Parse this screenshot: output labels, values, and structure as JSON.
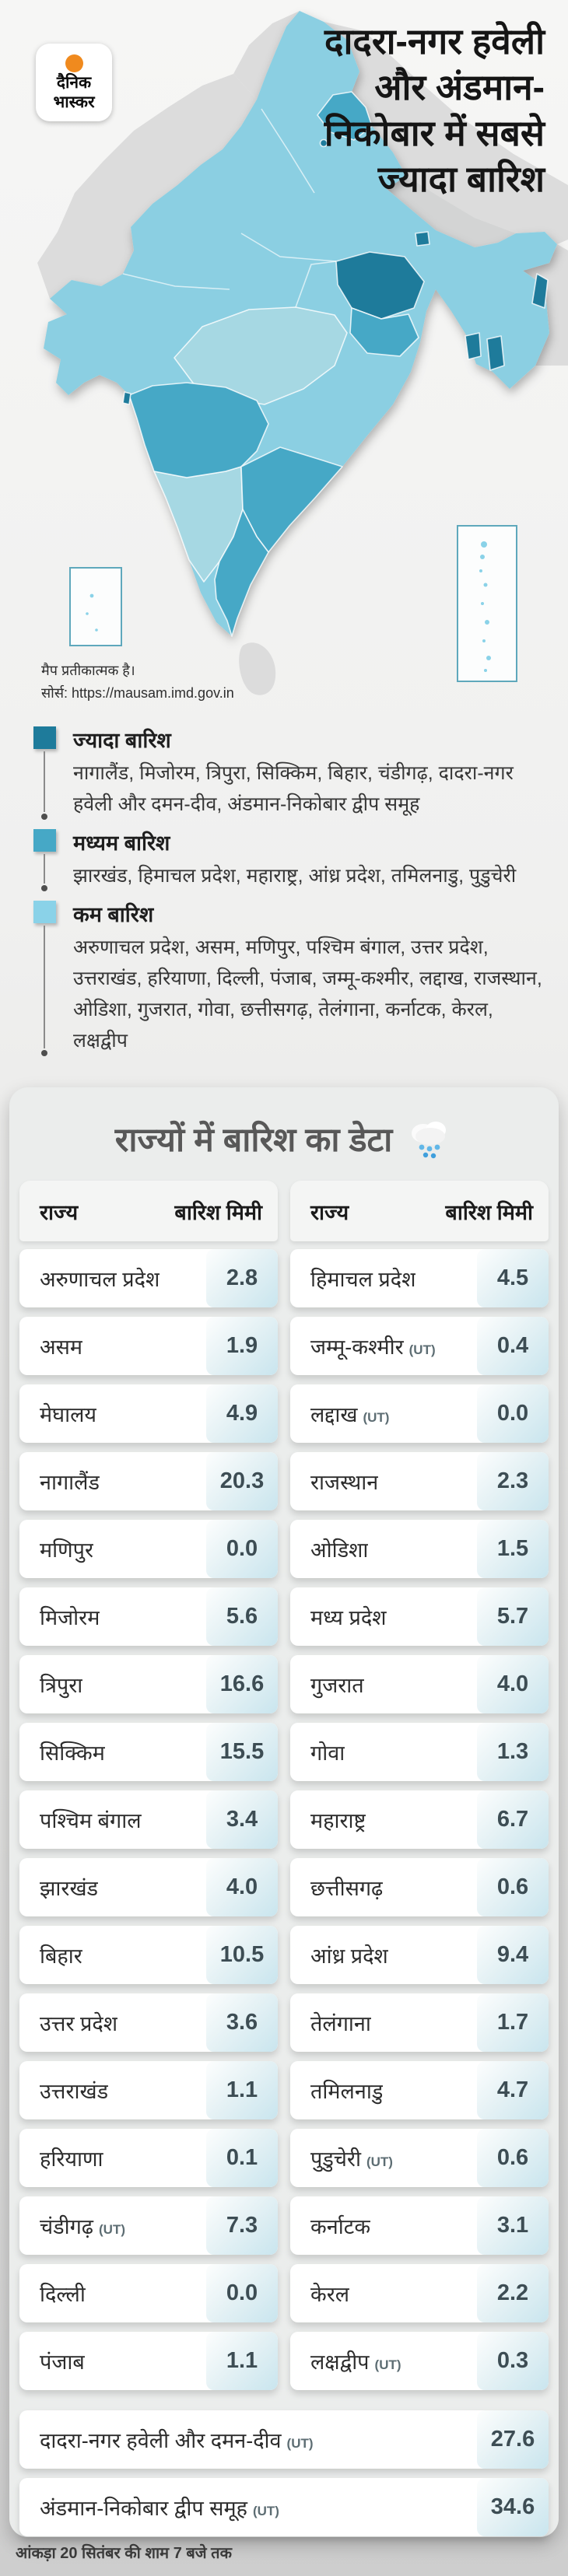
{
  "brand": {
    "logo_line1": "दैनिक",
    "logo_line2": "भास्कर"
  },
  "header": {
    "title_lines": [
      "दादरा-नगर हवेली",
      "और अंडमान-",
      "निकोबार में सबसे",
      "ज्यादा बारिश"
    ]
  },
  "map": {
    "note_line1": "मैप प्रतीकात्मक है।",
    "note_line2": "सोर्स: https://mausam.imd.gov.in"
  },
  "legend": {
    "items": [
      {
        "label": "ज्यादा बारिश",
        "color": "#1e7b9b",
        "states": "नागालैंड, मिजोरम, त्रिपुरा, सिक्किम, बिहार, चंडीगढ़, दादरा-नगर हवेली और दमन-दीव, अंडमान-निकोबार द्वीप समूह"
      },
      {
        "label": "मध्यम बारिश",
        "color": "#46a8c6",
        "states": "झारखंड, हिमाचल प्रदेश, महाराष्ट्र, आंध्र प्रदेश, तमिलनाडु, पुडुचेरी"
      },
      {
        "label": "कम बारिश",
        "color": "#8ad2e8",
        "states": "अरुणाचल प्रदेश, असम, मणिपुर, पश्चिम बंगाल, उत्तर प्रदेश, उत्तराखंड, हरियाणा, दिल्ली, पंजाब, जम्मू-कश्मीर, लद्दाख, राजस्थान, ओडिशा, गुजरात, गोवा, छत्तीसगढ़, तेलंगाना, कर्नाटक, केरल, लक्षद्वीप"
      }
    ]
  },
  "table": {
    "title": "राज्यों में बारिश का डेटा",
    "col_state": "राज्य",
    "col_rain": "बारिश मिमी",
    "left": [
      {
        "name": "अरुणाचल प्रदेश",
        "ut": "",
        "value": "2.8"
      },
      {
        "name": "असम",
        "ut": "",
        "value": "1.9"
      },
      {
        "name": "मेघालय",
        "ut": "",
        "value": "4.9"
      },
      {
        "name": "नागालैंड",
        "ut": "",
        "value": "20.3"
      },
      {
        "name": "मणिपुर",
        "ut": "",
        "value": "0.0"
      },
      {
        "name": "मिजोरम",
        "ut": "",
        "value": "5.6"
      },
      {
        "name": "त्रिपुरा",
        "ut": "",
        "value": "16.6"
      },
      {
        "name": "सिक्किम",
        "ut": "",
        "value": "15.5"
      },
      {
        "name": "पश्चिम बंगाल",
        "ut": "",
        "value": "3.4"
      },
      {
        "name": "झारखंड",
        "ut": "",
        "value": "4.0"
      },
      {
        "name": "बिहार",
        "ut": "",
        "value": "10.5"
      },
      {
        "name": "उत्तर प्रदेश",
        "ut": "",
        "value": "3.6"
      },
      {
        "name": "उत्तराखंड",
        "ut": "",
        "value": "1.1"
      },
      {
        "name": "हरियाणा",
        "ut": "",
        "value": "0.1"
      },
      {
        "name": "चंडीगढ़",
        "ut": "(UT)",
        "value": "7.3"
      },
      {
        "name": "दिल्ली",
        "ut": "",
        "value": "0.0"
      },
      {
        "name": "पंजाब",
        "ut": "",
        "value": "1.1"
      }
    ],
    "right": [
      {
        "name": "हिमाचल प्रदेश",
        "ut": "",
        "value": "4.5"
      },
      {
        "name": "जम्मू-कश्मीर",
        "ut": "(UT)",
        "value": "0.4"
      },
      {
        "name": "लद्दाख",
        "ut": "(UT)",
        "value": "0.0"
      },
      {
        "name": "राजस्थान",
        "ut": "",
        "value": "2.3"
      },
      {
        "name": "ओडिशा",
        "ut": "",
        "value": "1.5"
      },
      {
        "name": "मध्य प्रदेश",
        "ut": "",
        "value": "5.7"
      },
      {
        "name": "गुजरात",
        "ut": "",
        "value": "4.0"
      },
      {
        "name": "गोवा",
        "ut": "",
        "value": "1.3"
      },
      {
        "name": "महाराष्ट्र",
        "ut": "",
        "value": "6.7"
      },
      {
        "name": "छत्तीसगढ़",
        "ut": "",
        "value": "0.6"
      },
      {
        "name": "आंध्र प्रदेश",
        "ut": "",
        "value": "9.4"
      },
      {
        "name": "तेलंगाना",
        "ut": "",
        "value": "1.7"
      },
      {
        "name": "तमिलनाडु",
        "ut": "",
        "value": "4.7"
      },
      {
        "name": "पुडुचेरी",
        "ut": "(UT)",
        "value": "0.6"
      },
      {
        "name": "कर्नाटक",
        "ut": "",
        "value": "3.1"
      },
      {
        "name": "केरल",
        "ut": "",
        "value": "2.2"
      },
      {
        "name": "लक्षद्वीप",
        "ut": "(UT)",
        "value": "0.3"
      }
    ],
    "wide": [
      {
        "name": "दादरा-नगर हवेली और दमन-दीव",
        "ut": "(UT)",
        "value": "27.6"
      },
      {
        "name": "अंडमान-निकोबार द्वीप समूह",
        "ut": "(UT)",
        "value": "34.6"
      }
    ]
  },
  "footer": {
    "note": "आंकड़ा 20 सितंबर की शाम 7 बजे तक"
  },
  "icons": {
    "rain_cloud": "rain-cloud-icon"
  },
  "colors": {
    "rain_high": "#1e7b9b",
    "rain_medium": "#46a8c6",
    "rain_low": "#8ad2e8",
    "value_cell_tint": "#c9e5ee",
    "logo_orange": "#f08a1e"
  },
  "chart_data": {
    "type": "table",
    "title": "राज्यों में बारिश का डेटा",
    "columns": [
      "राज्य",
      "बारिश मिमी"
    ],
    "unit": "mm",
    "rows": [
      [
        "अरुणाचल प्रदेश",
        2.8
      ],
      [
        "असम",
        1.9
      ],
      [
        "मेघालय",
        4.9
      ],
      [
        "नागालैंड",
        20.3
      ],
      [
        "मणिपुर",
        0.0
      ],
      [
        "मिजोरम",
        5.6
      ],
      [
        "त्रिपुरा",
        16.6
      ],
      [
        "सिक्किम",
        15.5
      ],
      [
        "पश्चिम बंगाल",
        3.4
      ],
      [
        "झारखंड",
        4.0
      ],
      [
        "बिहार",
        10.5
      ],
      [
        "उत्तर प्रदेश",
        3.6
      ],
      [
        "उत्तराखंड",
        1.1
      ],
      [
        "हरियाणा",
        0.1
      ],
      [
        "चंडीगढ़ (UT)",
        7.3
      ],
      [
        "दिल्ली",
        0.0
      ],
      [
        "पंजाब",
        1.1
      ],
      [
        "हिमाचल प्रदेश",
        4.5
      ],
      [
        "जम्मू-कश्मीर (UT)",
        0.4
      ],
      [
        "लद्दाख (UT)",
        0.0
      ],
      [
        "राजस्थान",
        2.3
      ],
      [
        "ओडिशा",
        1.5
      ],
      [
        "मध्य प्रदेश",
        5.7
      ],
      [
        "गुजरात",
        4.0
      ],
      [
        "गोवा",
        1.3
      ],
      [
        "महाराष्ट्र",
        6.7
      ],
      [
        "छत्तीसगढ़",
        0.6
      ],
      [
        "आंध्र प्रदेश",
        9.4
      ],
      [
        "तेलंगाना",
        1.7
      ],
      [
        "तमिलनाडु",
        4.7
      ],
      [
        "पुडुचेरी (UT)",
        0.6
      ],
      [
        "कर्नाटक",
        3.1
      ],
      [
        "केरल",
        2.2
      ],
      [
        "लक्षद्वीप (UT)",
        0.3
      ],
      [
        "दादरा-नगर हवेली और दमन-दीव (UT)",
        27.6
      ],
      [
        "अंडमान-निकोबार द्वीप समूह (UT)",
        34.6
      ]
    ],
    "note": "आंकड़ा 20 सितंबर की शाम 7 बजे तक",
    "map_classification": {
      "ज्यादा बारिश": [
        "नागालैंड",
        "मिजोरम",
        "त्रिपुरा",
        "सिक्किम",
        "बिहार",
        "चंडीगढ़",
        "दादरा-नगर हवेली और दमन-दीव",
        "अंडमान-निकोबार द्वीप समूह"
      ],
      "मध्यम बारिश": [
        "झारखंड",
        "हिमाचल प्रदेश",
        "महाराष्ट्र",
        "आंध्र प्रदेश",
        "तमिलनाडु",
        "पुडुचेरी"
      ],
      "कम बारिश": [
        "अरुणाचल प्रदेश",
        "असम",
        "मणिपुर",
        "पश्चिम बंगाल",
        "उत्तर प्रदेश",
        "उत्तराखंड",
        "हरियाणा",
        "दिल्ली",
        "पंजाब",
        "जम्मू-कश्मीर",
        "लद्दाख",
        "राजस्थान",
        "ओडिशा",
        "गुजरात",
        "गोवा",
        "छत्तीसगढ़",
        "तेलंगाना",
        "कर्नाटक",
        "केरल",
        "लक्षद्वीप"
      ]
    }
  }
}
